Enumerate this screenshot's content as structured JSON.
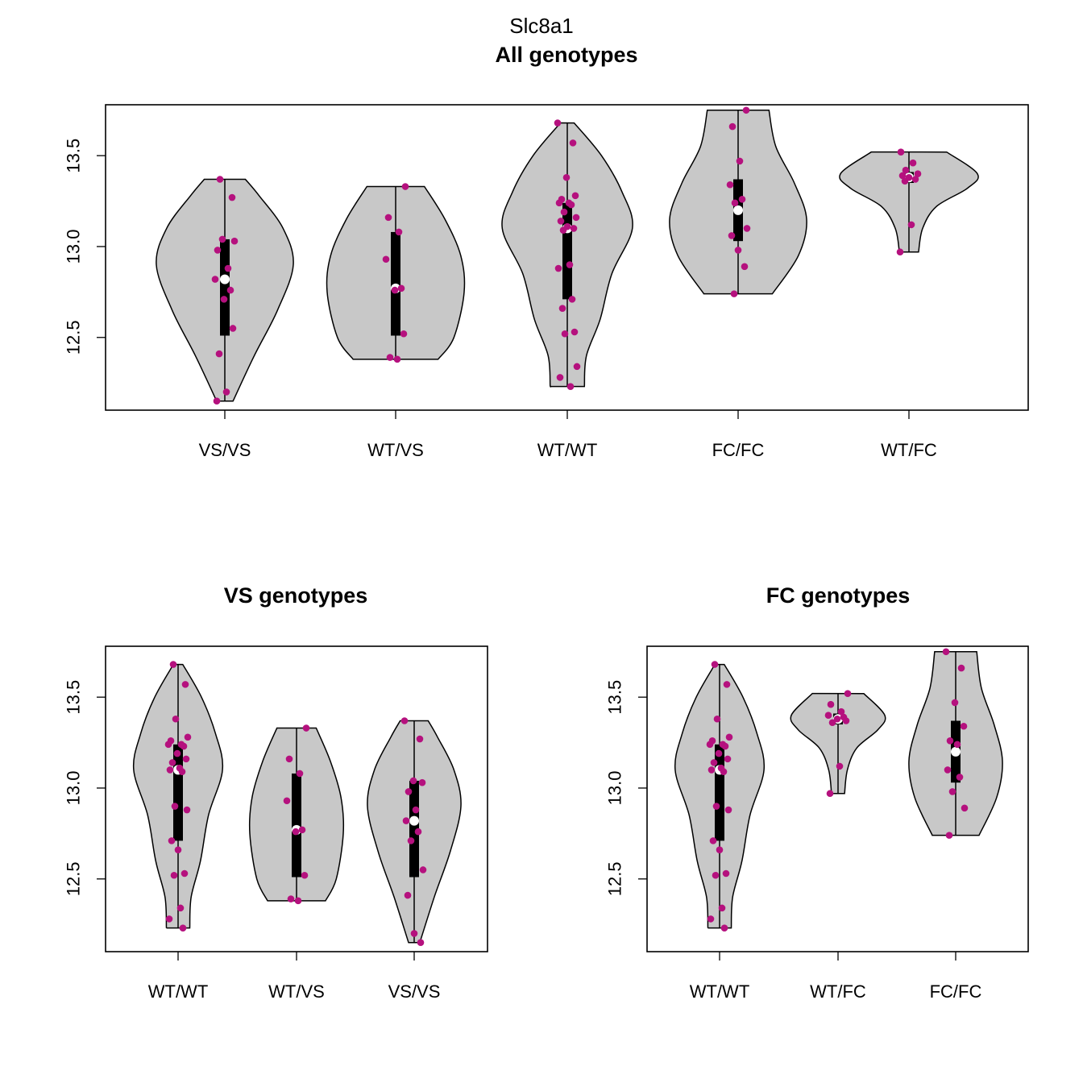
{
  "figure": {
    "title": "Slc8a1",
    "point_color": "#b5117e",
    "violin_color": "#c8c8c8",
    "box_color": "#000000",
    "median_color": "#ffffff"
  },
  "chart_data": [
    {
      "type": "violin",
      "title": "All genotypes",
      "xlabel": "",
      "ylabel": "",
      "ylim": [
        12.1,
        13.78
      ],
      "yticks": [
        12.5,
        13.0,
        13.5
      ],
      "ytick_labels": [
        "12.5",
        "13.0",
        "13.5"
      ],
      "categories": [
        "VS/VS",
        "WT/VS",
        "WT/WT",
        "FC/FC",
        "WT/FC"
      ],
      "series": [
        {
          "category": "VS/VS",
          "violin_profile": [
            [
              12.15,
              0.12
            ],
            [
              12.4,
              0.43
            ],
            [
              12.65,
              0.77
            ],
            [
              12.9,
              1.0
            ],
            [
              13.1,
              0.85
            ],
            [
              13.28,
              0.5
            ],
            [
              13.37,
              0.3
            ]
          ],
          "range": [
            12.15,
            13.37
          ],
          "q1": 12.51,
          "q3": 13.04,
          "median": 12.82,
          "points": [
            13.37,
            13.27,
            13.04,
            13.03,
            12.98,
            12.88,
            12.82,
            12.76,
            12.71,
            12.55,
            12.41,
            12.2,
            12.15
          ]
        },
        {
          "category": "WT/VS",
          "violin_profile": [
            [
              12.38,
              0.62
            ],
            [
              12.5,
              0.85
            ],
            [
              12.75,
              1.0
            ],
            [
              12.95,
              0.95
            ],
            [
              13.15,
              0.72
            ],
            [
              13.33,
              0.42
            ]
          ],
          "range": [
            12.38,
            13.33
          ],
          "q1": 12.51,
          "q3": 13.08,
          "median": 12.77,
          "points": [
            13.33,
            13.16,
            13.08,
            12.93,
            12.77,
            12.76,
            12.52,
            12.39,
            12.38
          ]
        },
        {
          "category": "WT/WT",
          "violin_profile": [
            [
              12.23,
              0.25
            ],
            [
              12.4,
              0.28
            ],
            [
              12.6,
              0.48
            ],
            [
              12.85,
              0.65
            ],
            [
              13.1,
              0.95
            ],
            [
              13.3,
              0.8
            ],
            [
              13.5,
              0.5
            ],
            [
              13.68,
              0.1
            ]
          ],
          "range": [
            12.23,
            13.68
          ],
          "q1": 12.71,
          "q3": 13.24,
          "median": 13.1,
          "points": [
            13.68,
            13.57,
            13.38,
            13.28,
            13.26,
            13.24,
            13.24,
            13.23,
            13.19,
            13.16,
            13.14,
            13.11,
            13.1,
            13.09,
            12.9,
            12.88,
            12.71,
            12.66,
            12.53,
            12.52,
            12.34,
            12.28,
            12.23
          ]
        },
        {
          "category": "FC/FC",
          "violin_profile": [
            [
              12.74,
              0.5
            ],
            [
              12.95,
              0.88
            ],
            [
              13.15,
              1.0
            ],
            [
              13.35,
              0.82
            ],
            [
              13.55,
              0.55
            ],
            [
              13.75,
              0.45
            ]
          ],
          "range": [
            12.74,
            13.75
          ],
          "q1": 13.03,
          "q3": 13.37,
          "median": 13.2,
          "points": [
            13.75,
            13.66,
            13.47,
            13.34,
            13.26,
            13.24,
            13.1,
            13.06,
            12.98,
            12.89,
            12.74
          ]
        },
        {
          "category": "WT/FC",
          "violin_profile": [
            [
              12.97,
              0.14
            ],
            [
              13.1,
              0.2
            ],
            [
              13.22,
              0.4
            ],
            [
              13.32,
              0.85
            ],
            [
              13.4,
              1.0
            ],
            [
              13.52,
              0.55
            ]
          ],
          "range": [
            12.97,
            13.52
          ],
          "q1": 13.35,
          "q3": 13.41,
          "median": 13.38,
          "points": [
            13.52,
            13.46,
            13.42,
            13.4,
            13.39,
            13.38,
            13.37,
            13.36,
            13.12,
            12.97
          ]
        }
      ]
    },
    {
      "type": "violin",
      "title": "VS genotypes",
      "xlabel": "",
      "ylabel": "",
      "ylim": [
        12.1,
        13.78
      ],
      "yticks": [
        12.5,
        13.0,
        13.5
      ],
      "ytick_labels": [
        "12.5",
        "13.0",
        "13.5"
      ],
      "categories": [
        "WT/WT",
        "WT/VS",
        "VS/VS"
      ],
      "series": [
        {
          "category": "WT/WT",
          "violin_profile": [
            [
              12.23,
              0.25
            ],
            [
              12.4,
              0.28
            ],
            [
              12.6,
              0.48
            ],
            [
              12.85,
              0.65
            ],
            [
              13.1,
              0.95
            ],
            [
              13.3,
              0.8
            ],
            [
              13.5,
              0.5
            ],
            [
              13.68,
              0.1
            ]
          ],
          "range": [
            12.23,
            13.68
          ],
          "q1": 12.71,
          "q3": 13.24,
          "median": 13.1,
          "points": [
            13.68,
            13.57,
            13.38,
            13.28,
            13.26,
            13.24,
            13.24,
            13.23,
            13.19,
            13.16,
            13.14,
            13.11,
            13.1,
            13.09,
            12.9,
            12.88,
            12.71,
            12.66,
            12.53,
            12.52,
            12.34,
            12.28,
            12.23
          ]
        },
        {
          "category": "WT/VS",
          "violin_profile": [
            [
              12.38,
              0.62
            ],
            [
              12.5,
              0.85
            ],
            [
              12.75,
              1.0
            ],
            [
              12.95,
              0.95
            ],
            [
              13.15,
              0.72
            ],
            [
              13.33,
              0.42
            ]
          ],
          "range": [
            12.38,
            13.33
          ],
          "q1": 12.51,
          "q3": 13.08,
          "median": 12.77,
          "points": [
            13.33,
            13.16,
            13.08,
            12.93,
            12.77,
            12.76,
            12.52,
            12.39,
            12.38
          ]
        },
        {
          "category": "VS/VS",
          "violin_profile": [
            [
              12.15,
              0.12
            ],
            [
              12.4,
              0.43
            ],
            [
              12.65,
              0.77
            ],
            [
              12.9,
              1.0
            ],
            [
              13.1,
              0.85
            ],
            [
              13.28,
              0.5
            ],
            [
              13.37,
              0.3
            ]
          ],
          "range": [
            12.15,
            13.37
          ],
          "q1": 12.51,
          "q3": 13.04,
          "median": 12.82,
          "points": [
            13.37,
            13.27,
            13.04,
            13.03,
            12.98,
            12.88,
            12.82,
            12.76,
            12.71,
            12.55,
            12.41,
            12.2,
            12.15
          ]
        }
      ]
    },
    {
      "type": "violin",
      "title": "FC genotypes",
      "xlabel": "",
      "ylabel": "",
      "ylim": [
        12.1,
        13.78
      ],
      "yticks": [
        12.5,
        13.0,
        13.5
      ],
      "ytick_labels": [
        "12.5",
        "13.0",
        "13.5"
      ],
      "categories": [
        "WT/WT",
        "WT/FC",
        "FC/FC"
      ],
      "series": [
        {
          "category": "WT/WT",
          "violin_profile": [
            [
              12.23,
              0.25
            ],
            [
              12.4,
              0.28
            ],
            [
              12.6,
              0.48
            ],
            [
              12.85,
              0.65
            ],
            [
              13.1,
              0.95
            ],
            [
              13.3,
              0.8
            ],
            [
              13.5,
              0.5
            ],
            [
              13.68,
              0.1
            ]
          ],
          "range": [
            12.23,
            13.68
          ],
          "q1": 12.71,
          "q3": 13.24,
          "median": 13.1,
          "points": [
            13.68,
            13.57,
            13.38,
            13.28,
            13.26,
            13.24,
            13.24,
            13.23,
            13.19,
            13.16,
            13.14,
            13.11,
            13.1,
            13.09,
            12.9,
            12.88,
            12.71,
            12.66,
            12.53,
            12.52,
            12.34,
            12.28,
            12.23
          ]
        },
        {
          "category": "WT/FC",
          "violin_profile": [
            [
              12.97,
              0.14
            ],
            [
              13.1,
              0.2
            ],
            [
              13.22,
              0.4
            ],
            [
              13.32,
              0.85
            ],
            [
              13.4,
              1.0
            ],
            [
              13.52,
              0.55
            ]
          ],
          "range": [
            12.97,
            13.52
          ],
          "q1": 13.35,
          "q3": 13.41,
          "median": 13.38,
          "points": [
            13.52,
            13.46,
            13.42,
            13.4,
            13.39,
            13.38,
            13.37,
            13.36,
            13.12,
            12.97
          ]
        },
        {
          "category": "FC/FC",
          "violin_profile": [
            [
              12.74,
              0.5
            ],
            [
              12.95,
              0.88
            ],
            [
              13.15,
              1.0
            ],
            [
              13.35,
              0.82
            ],
            [
              13.55,
              0.55
            ],
            [
              13.75,
              0.45
            ]
          ],
          "range": [
            12.74,
            13.75
          ],
          "q1": 13.03,
          "q3": 13.37,
          "median": 13.2,
          "points": [
            13.75,
            13.66,
            13.47,
            13.34,
            13.26,
            13.24,
            13.1,
            13.06,
            12.98,
            12.89,
            12.74
          ]
        }
      ]
    }
  ]
}
